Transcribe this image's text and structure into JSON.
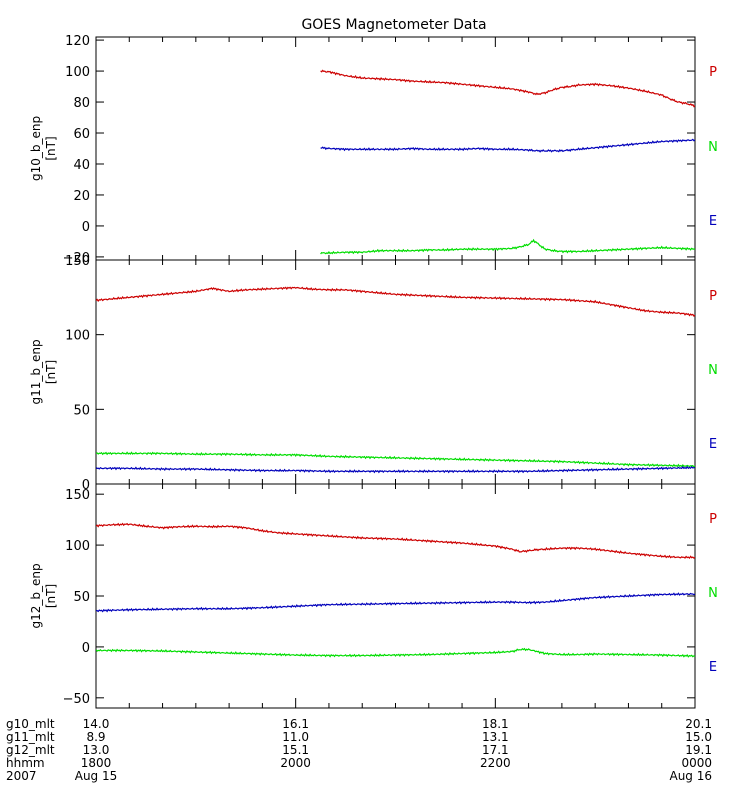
{
  "title": "GOES Magnetometer Data",
  "colors": {
    "P": "#cc0000",
    "N": "#00dd00",
    "E": "#0000bb",
    "axis": "#000000"
  },
  "chart_data": [
    {
      "type": "line",
      "ylabel": "g10_b_enp",
      "yunit": "[nT]",
      "xlim": [
        0,
        360
      ],
      "ylim": [
        -22,
        122
      ],
      "yticks": [
        -20,
        0,
        20,
        40,
        60,
        80,
        100,
        120
      ],
      "yticklabels": [
        "−20",
        "0",
        "20",
        "40",
        "60",
        "80",
        "100",
        "120"
      ],
      "legend": [
        "P",
        "N",
        "E"
      ],
      "series": [
        {
          "name": "P",
          "color": "#cc0000",
          "x": [
            135,
            140,
            150,
            160,
            170,
            180,
            190,
            200,
            210,
            220,
            230,
            240,
            250,
            260,
            265,
            270,
            275,
            280,
            285,
            290,
            300,
            310,
            320,
            330,
            340,
            345,
            350,
            355,
            360
          ],
          "y": [
            100,
            99.5,
            97,
            95.5,
            95,
            94.5,
            93.5,
            93,
            92.5,
            91.5,
            90.5,
            89.5,
            88.5,
            86.5,
            85,
            86,
            88,
            89.5,
            90,
            91,
            91.5,
            90.5,
            89,
            87,
            84.5,
            82,
            80,
            79,
            77.5
          ]
        },
        {
          "name": "E",
          "color": "#0000bb",
          "x": [
            135,
            140,
            150,
            160,
            170,
            180,
            190,
            200,
            210,
            220,
            230,
            240,
            250,
            260,
            265,
            270,
            275,
            280,
            285,
            290,
            300,
            310,
            320,
            330,
            340,
            350,
            360
          ],
          "y": [
            50.5,
            50,
            49.5,
            49.5,
            49.5,
            49.5,
            50,
            49.5,
            49.5,
            49.5,
            50,
            49.5,
            49.5,
            49,
            48.5,
            48.5,
            48.5,
            48.5,
            49,
            49.5,
            50.5,
            51.5,
            52.5,
            53.5,
            54.5,
            55,
            55.5
          ]
        },
        {
          "name": "N",
          "color": "#00dd00",
          "x": [
            135,
            140,
            150,
            160,
            170,
            180,
            190,
            200,
            210,
            220,
            230,
            240,
            250,
            255,
            260,
            263,
            265,
            268,
            270,
            275,
            280,
            290,
            300,
            310,
            320,
            330,
            340,
            350,
            360
          ],
          "y": [
            -17.5,
            -17.5,
            -17,
            -17,
            -16,
            -16,
            -16,
            -15.5,
            -15.5,
            -15,
            -15,
            -15,
            -14.5,
            -13.5,
            -12,
            -9.5,
            -11,
            -13.5,
            -15,
            -16,
            -16.5,
            -16.5,
            -16,
            -15.5,
            -15,
            -14.5,
            -14,
            -14.5,
            -15
          ]
        }
      ]
    },
    {
      "type": "line",
      "ylabel": "g11_b_enp",
      "yunit": "[nT]",
      "xlim": [
        0,
        360
      ],
      "ylim": [
        0,
        150
      ],
      "yticks": [
        0,
        50,
        100,
        150
      ],
      "yticklabels": [
        "0",
        "50",
        "100",
        "150"
      ],
      "legend": [
        "P",
        "N",
        "E"
      ],
      "series": [
        {
          "name": "P",
          "color": "#cc0000",
          "x": [
            0,
            10,
            20,
            30,
            40,
            50,
            60,
            70,
            80,
            90,
            100,
            110,
            120,
            130,
            140,
            150,
            160,
            170,
            180,
            200,
            220,
            240,
            260,
            280,
            300,
            310,
            320,
            330,
            340,
            350,
            360
          ],
          "y": [
            123,
            124,
            125,
            126,
            127,
            128,
            129,
            131,
            129,
            130,
            130.5,
            131,
            131.5,
            130.5,
            130,
            130,
            129,
            128,
            127,
            126,
            125,
            124.5,
            124,
            123.5,
            122,
            120,
            118,
            116,
            115,
            114.5,
            113
          ]
        },
        {
          "name": "N",
          "color": "#00dd00",
          "x": [
            0,
            20,
            40,
            60,
            80,
            100,
            120,
            140,
            160,
            180,
            200,
            220,
            240,
            260,
            280,
            300,
            320,
            340,
            360
          ],
          "y": [
            20.5,
            20.5,
            20.5,
            20,
            20,
            19.5,
            19.5,
            18.5,
            18,
            17.5,
            17,
            16.5,
            16,
            15.5,
            15,
            14,
            13,
            12.5,
            12
          ]
        },
        {
          "name": "E",
          "color": "#0000bb",
          "x": [
            0,
            20,
            40,
            60,
            80,
            100,
            120,
            140,
            160,
            180,
            200,
            220,
            240,
            260,
            280,
            300,
            320,
            340,
            360
          ],
          "y": [
            10.5,
            10.5,
            10,
            10,
            9.5,
            9,
            9,
            8.5,
            8.5,
            8.5,
            8.5,
            8.5,
            8.5,
            8.5,
            9,
            9.5,
            10,
            10.5,
            11
          ]
        }
      ]
    },
    {
      "type": "line",
      "ylabel": "g12_b_enp",
      "yunit": "[nT]",
      "xlim": [
        0,
        360
      ],
      "ylim": [
        -60,
        160
      ],
      "yticks": [
        -50,
        0,
        50,
        100,
        150
      ],
      "yticklabels": [
        "−50",
        "0",
        "50",
        "100",
        "150"
      ],
      "legend": [
        "P",
        "N",
        "E"
      ],
      "series": [
        {
          "name": "P",
          "color": "#cc0000",
          "x": [
            0,
            10,
            20,
            30,
            40,
            50,
            60,
            70,
            80,
            90,
            100,
            110,
            120,
            130,
            140,
            160,
            180,
            200,
            220,
            240,
            250,
            255,
            260,
            265,
            270,
            280,
            290,
            300,
            310,
            320,
            330,
            340,
            350,
            360
          ],
          "y": [
            119,
            120,
            120.5,
            118.5,
            117,
            118,
            118.5,
            118,
            118.5,
            117,
            114,
            112,
            111,
            110,
            109,
            107,
            106,
            104,
            102,
            99,
            96,
            93.5,
            94.5,
            95.5,
            96,
            97,
            97,
            96,
            94,
            92,
            90.5,
            89,
            88,
            88
          ]
        },
        {
          "name": "E",
          "color": "#0000bb",
          "x": [
            0,
            20,
            40,
            60,
            80,
            100,
            120,
            140,
            160,
            180,
            200,
            220,
            240,
            250,
            260,
            270,
            280,
            290,
            300,
            320,
            340,
            360
          ],
          "y": [
            35.5,
            36.5,
            37,
            37.5,
            37.5,
            38.5,
            40,
            41.5,
            42,
            42.5,
            43,
            43.5,
            44,
            44,
            43.5,
            44,
            45.5,
            47,
            48.5,
            50,
            51.5,
            52
          ]
        },
        {
          "name": "N",
          "color": "#00dd00",
          "x": [
            0,
            20,
            40,
            60,
            80,
            100,
            120,
            140,
            160,
            180,
            200,
            220,
            240,
            250,
            255,
            260,
            270,
            280,
            290,
            300,
            320,
            340,
            360
          ],
          "y": [
            -3.5,
            -3.5,
            -4,
            -5,
            -6,
            -7,
            -8,
            -8.5,
            -8.5,
            -8,
            -7.5,
            -6.5,
            -5.5,
            -4.5,
            -2.5,
            -2.5,
            -6.5,
            -7.5,
            -7.5,
            -7,
            -7.5,
            -8,
            -9
          ]
        }
      ]
    }
  ],
  "x_axis": {
    "row_labels": [
      "g10_mlt",
      "g11_mlt",
      "g12_mlt",
      "hhmm",
      "2007"
    ],
    "ticks": [
      {
        "minutes": 0,
        "values": [
          "14.0",
          "8.9",
          "13.0",
          "1800",
          "Aug 15"
        ]
      },
      {
        "minutes": 120,
        "values": [
          "16.1",
          "11.0",
          "15.1",
          "2000",
          ""
        ]
      },
      {
        "minutes": 240,
        "values": [
          "18.1",
          "13.1",
          "17.1",
          "2200",
          ""
        ]
      },
      {
        "minutes": 360,
        "values": [
          "20.1",
          "15.0",
          "19.1",
          "0000",
          "Aug 16"
        ]
      }
    ],
    "minor_step_minutes": 20
  }
}
